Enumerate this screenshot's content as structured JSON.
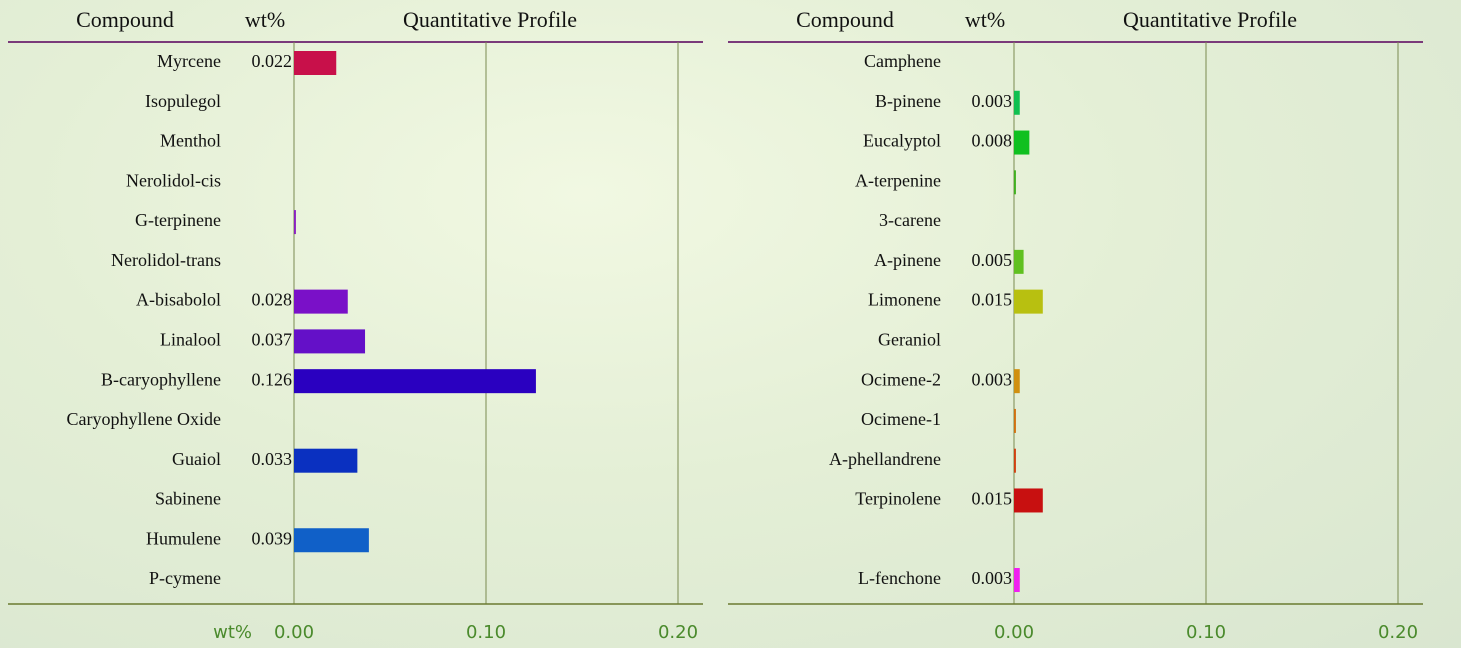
{
  "chart_data": [
    {
      "type": "bar",
      "orientation": "horizontal",
      "headers": {
        "compound": "Compound",
        "wt": "wt%",
        "profile": "Quantitative Profile"
      },
      "categories": [
        "Myrcene",
        "Isopulegol",
        "Menthol",
        "Nerolidol-cis",
        "G-terpinene",
        "Nerolidol-trans",
        "A-bisabolol",
        "Linalool",
        "B-caryophyllene",
        "Caryophyllene Oxide",
        "Guaiol",
        "Sabinene",
        "Humulene",
        "P-cymene"
      ],
      "values": [
        0.022,
        0,
        0,
        0,
        0.001,
        0,
        0.028,
        0.037,
        0.126,
        0,
        0.033,
        0,
        0.039,
        0
      ],
      "value_labels": [
        "0.022",
        null,
        null,
        null,
        null,
        null,
        "0.028",
        "0.037",
        "0.126",
        null,
        "0.033",
        null,
        "0.039",
        null
      ],
      "colors": [
        "#c8104a",
        null,
        null,
        null,
        "#8a20c0",
        null,
        "#7a10c8",
        "#6410c8",
        "#2a00c0",
        null,
        "#0a30c0",
        null,
        "#1060c8",
        null
      ],
      "xlabel": "wt%",
      "xlim": [
        0,
        0.2
      ],
      "xticks": [
        {
          "value": 0,
          "label": "0.00"
        },
        {
          "value": 0.1,
          "label": "0.10"
        },
        {
          "value": 0.2,
          "label": "0.20"
        }
      ],
      "grid": true
    },
    {
      "type": "bar",
      "orientation": "horizontal",
      "headers": {
        "compound": "Compound",
        "wt": "wt%",
        "profile": "Quantitative Profile"
      },
      "categories": [
        "Camphene",
        "B-pinene",
        "Eucalyptol",
        "A-terpenine",
        "3-carene",
        "A-pinene",
        "Limonene",
        "Geraniol",
        "Ocimene-2",
        "Ocimene-1",
        "A-phellandrene",
        "Terpinolene",
        null,
        "L-fenchone"
      ],
      "values": [
        0,
        0.003,
        0.008,
        0.001,
        0,
        0.005,
        0.015,
        0,
        0.003,
        0.001,
        0.001,
        0.015,
        null,
        0.003
      ],
      "value_labels": [
        null,
        "0.003",
        "0.008",
        null,
        null,
        "0.005",
        "0.015",
        null,
        "0.003",
        null,
        null,
        "0.015",
        null,
        "0.003"
      ],
      "colors": [
        null,
        "#10c050",
        "#10c020",
        "#40b020",
        null,
        "#60c020",
        "#b8c010",
        null,
        "#d09010",
        "#d07010",
        "#d04010",
        "#c81010",
        null,
        "#f020f0"
      ],
      "xlim": [
        0,
        0.2
      ],
      "xticks": [
        {
          "value": 0,
          "label": "0.00"
        },
        {
          "value": 0.1,
          "label": "0.10"
        },
        {
          "value": 0.2,
          "label": "0.20"
        }
      ],
      "grid": true
    }
  ]
}
